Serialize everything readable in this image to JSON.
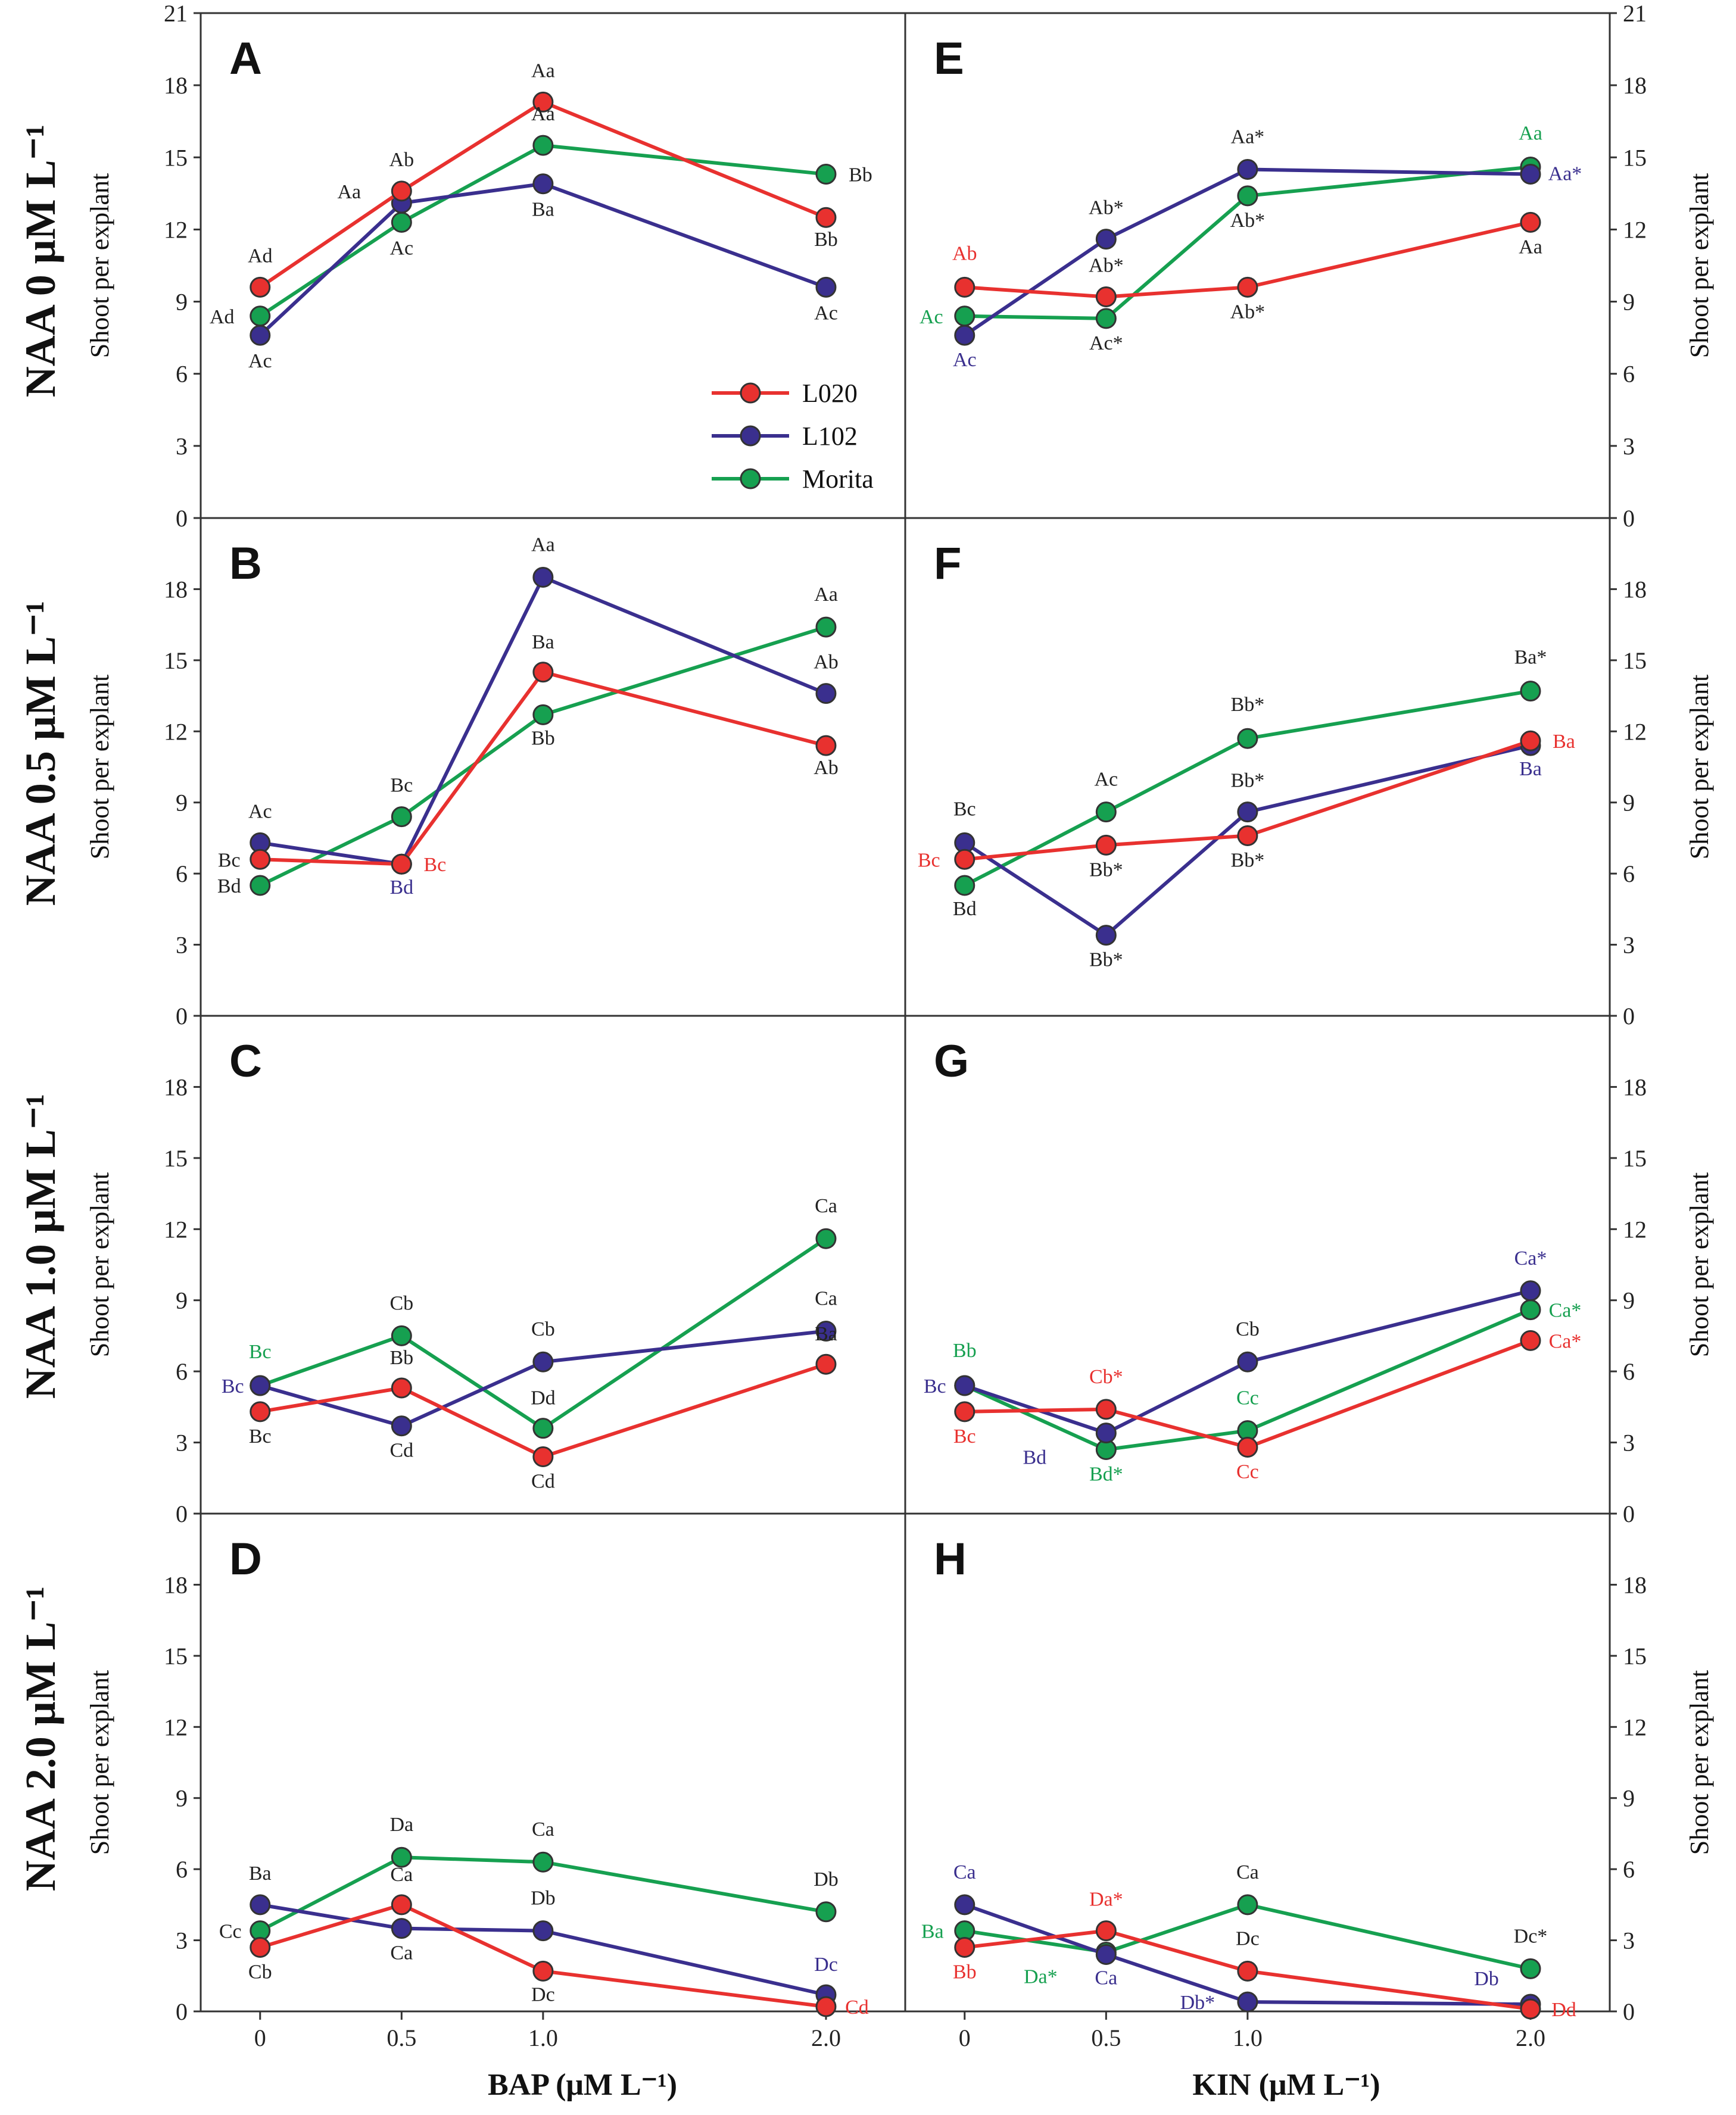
{
  "colors": {
    "L020": "#e8312f",
    "L102": "#3a2f8e",
    "Morita": "#16a050",
    "black": "#222222"
  },
  "legend": [
    "L020",
    "L102",
    "Morita"
  ],
  "y_axis_label": "Shoot per explant",
  "x_axis_labels": {
    "left": "BAP (μM L⁻¹)",
    "right": "KIN (μM L⁻¹)"
  },
  "x_tick_labels": [
    "0",
    "0.5",
    "1.0",
    "2.0"
  ],
  "row_labels": [
    "NAA 0 μM L⁻¹",
    "NAA 0.5 μM L⁻¹",
    "NAA 1.0 μM L⁻¹",
    "NAA 2.0 μM L⁻¹"
  ],
  "chart_data": [
    {
      "type": "line",
      "panel": "A",
      "xlabel": "BAP (μM L⁻¹)",
      "ylabel": "Shoot per explant",
      "ylim": [
        0,
        21
      ],
      "y_ticks": [
        "0",
        "3",
        "6",
        "9",
        "12",
        "15",
        "18",
        "21"
      ],
      "x": [
        0,
        0.5,
        1.0,
        2.0
      ],
      "series": [
        {
          "name": "L020",
          "values": [
            9.6,
            13.6,
            17.3,
            12.5
          ],
          "labels": [
            "Ad",
            "Ab",
            "Aa",
            "Bb"
          ],
          "label_colors": [
            "black",
            "black",
            "black",
            "black"
          ]
        },
        {
          "name": "L102",
          "values": [
            7.6,
            13.1,
            13.9,
            9.6
          ],
          "labels": [
            "Ac",
            "Aa",
            "Ba",
            "Ac"
          ],
          "label_colors": [
            "black",
            "black",
            "black",
            "black"
          ]
        },
        {
          "name": "Morita",
          "values": [
            8.4,
            12.3,
            15.5,
            14.3
          ],
          "labels": [
            "Ad",
            "Ac",
            "Aa",
            "Bb"
          ],
          "label_colors": [
            "black",
            "black",
            "black",
            "black"
          ]
        }
      ]
    },
    {
      "type": "line",
      "panel": "E",
      "xlabel": "KIN (μM L⁻¹)",
      "ylabel": "Shoot per explant",
      "ylim": [
        0,
        21
      ],
      "y_ticks": [
        "0",
        "3",
        "6",
        "9",
        "12",
        "15",
        "18",
        "21"
      ],
      "x": [
        0,
        0.5,
        1.0,
        2.0
      ],
      "series": [
        {
          "name": "L020",
          "values": [
            9.6,
            9.2,
            9.6,
            12.3
          ],
          "labels": [
            "Ab",
            "Ab*",
            "Ab*",
            "Aa"
          ],
          "label_colors": [
            "L020",
            "black",
            "black",
            "black"
          ]
        },
        {
          "name": "L102",
          "values": [
            7.6,
            11.6,
            14.5,
            14.3
          ],
          "labels": [
            "Ac",
            "Ab*",
            "Aa*",
            "Aa*"
          ],
          "label_colors": [
            "L102",
            "black",
            "black",
            "L102"
          ]
        },
        {
          "name": "Morita",
          "values": [
            8.4,
            8.3,
            13.4,
            14.6
          ],
          "labels": [
            "Ac",
            "Ac*",
            "Ab*",
            "Aa"
          ],
          "label_colors": [
            "Morita",
            "black",
            "black",
            "Morita"
          ]
        }
      ]
    },
    {
      "type": "line",
      "panel": "B",
      "xlabel": "BAP (μM L⁻¹)",
      "ylabel": "Shoot per explant",
      "ylim": [
        0,
        21
      ],
      "y_ticks": [
        "0",
        "3",
        "6",
        "9",
        "12",
        "15",
        "18"
      ],
      "x": [
        0,
        0.5,
        1.0,
        2.0
      ],
      "series": [
        {
          "name": "L020",
          "values": [
            6.6,
            6.4,
            14.5,
            11.4
          ],
          "labels": [
            "Bc",
            "Bc",
            "Ba",
            "Ab"
          ],
          "label_colors": [
            "black",
            "L020",
            "black",
            "black"
          ]
        },
        {
          "name": "L102",
          "values": [
            7.3,
            6.4,
            18.5,
            13.6
          ],
          "labels": [
            "Ac",
            "Bd",
            "Aa",
            "Ab"
          ],
          "label_colors": [
            "black",
            "L102",
            "black",
            "black"
          ]
        },
        {
          "name": "Morita",
          "values": [
            5.5,
            8.4,
            12.7,
            16.4
          ],
          "labels": [
            "Bd",
            "Bc",
            "Bb",
            "Aa"
          ],
          "label_colors": [
            "black",
            "black",
            "black",
            "black"
          ]
        }
      ]
    },
    {
      "type": "line",
      "panel": "F",
      "xlabel": "KIN (μM L⁻¹)",
      "ylabel": "Shoot per explant",
      "ylim": [
        0,
        21
      ],
      "y_ticks": [
        "0",
        "3",
        "6",
        "9",
        "12",
        "15",
        "18"
      ],
      "x": [
        0,
        0.5,
        1.0,
        2.0
      ],
      "series": [
        {
          "name": "L020",
          "values": [
            6.6,
            7.2,
            7.6,
            11.6
          ],
          "labels": [
            "Bc",
            "Bb*",
            "Bb*",
            "Ba"
          ],
          "label_colors": [
            "L020",
            "black",
            "black",
            "L020"
          ]
        },
        {
          "name": "L102",
          "values": [
            7.3,
            3.4,
            8.6,
            11.4
          ],
          "labels": [
            "Bc",
            "Bb*",
            "Bb*",
            "Ba"
          ],
          "label_colors": [
            "black",
            "black",
            "black",
            "L102"
          ]
        },
        {
          "name": "Morita",
          "values": [
            5.5,
            8.6,
            11.7,
            13.7
          ],
          "labels": [
            "Bd",
            "Ac",
            "Bb*",
            "Ba*"
          ],
          "label_colors": [
            "black",
            "black",
            "black",
            "black"
          ]
        }
      ]
    },
    {
      "type": "line",
      "panel": "C",
      "xlabel": "BAP (μM L⁻¹)",
      "ylabel": "Shoot per explant",
      "ylim": [
        0,
        21
      ],
      "y_ticks": [
        "0",
        "3",
        "6",
        "9",
        "12",
        "15",
        "18"
      ],
      "x": [
        0,
        0.5,
        1.0,
        2.0
      ],
      "series": [
        {
          "name": "L020",
          "values": [
            4.3,
            5.3,
            2.4,
            6.3
          ],
          "labels": [
            "Bc",
            "Bb",
            "Cd",
            "Ba"
          ],
          "label_colors": [
            "black",
            "black",
            "black",
            "black"
          ]
        },
        {
          "name": "L102",
          "values": [
            5.4,
            3.7,
            6.4,
            7.7
          ],
          "labels": [
            "Bc",
            "Cd",
            "Cb",
            "Ca"
          ],
          "label_colors": [
            "L102",
            "black",
            "black",
            "black"
          ]
        },
        {
          "name": "Morita",
          "values": [
            5.4,
            7.5,
            3.6,
            11.6
          ],
          "labels": [
            "Bc",
            "Cb",
            "Dd",
            "Ca"
          ],
          "label_colors": [
            "Morita",
            "black",
            "black",
            "black"
          ]
        }
      ]
    },
    {
      "type": "line",
      "panel": "G",
      "xlabel": "KIN (μM L⁻¹)",
      "ylabel": "Shoot per explant",
      "ylim": [
        0,
        21
      ],
      "y_ticks": [
        "0",
        "3",
        "6",
        "9",
        "12",
        "15",
        "18"
      ],
      "x": [
        0,
        0.5,
        1.0,
        2.0
      ],
      "series": [
        {
          "name": "L020",
          "values": [
            4.3,
            4.4,
            2.8,
            7.3
          ],
          "labels": [
            "Bc",
            "Cb*",
            "Cc",
            "Ca*"
          ],
          "label_colors": [
            "L020",
            "L020",
            "L020",
            "L020"
          ]
        },
        {
          "name": "L102",
          "values": [
            5.4,
            3.4,
            6.4,
            9.4
          ],
          "labels": [
            "Bc",
            "Bd",
            "Cb",
            "Ca*"
          ],
          "label_colors": [
            "L102",
            "L102",
            "black",
            "L102"
          ]
        },
        {
          "name": "Morita",
          "values": [
            5.4,
            2.7,
            3.5,
            8.6
          ],
          "labels": [
            "Bb",
            "Bd*",
            "Cc",
            "Ca*"
          ],
          "label_colors": [
            "Morita",
            "Morita",
            "Morita",
            "Morita"
          ]
        }
      ]
    },
    {
      "type": "line",
      "panel": "D",
      "xlabel": "BAP (μM L⁻¹)",
      "ylabel": "Shoot per explant",
      "ylim": [
        0,
        21
      ],
      "y_ticks": [
        "0",
        "3",
        "6",
        "9",
        "12",
        "15",
        "18"
      ],
      "x": [
        0,
        0.5,
        1.0,
        2.0
      ],
      "series": [
        {
          "name": "L020",
          "values": [
            2.7,
            4.5,
            1.7,
            0.2
          ],
          "labels": [
            "Cb",
            "Ca",
            "Dc",
            "Cd"
          ],
          "label_colors": [
            "black",
            "black",
            "black",
            "L020"
          ]
        },
        {
          "name": "L102",
          "values": [
            4.5,
            3.5,
            3.4,
            0.7
          ],
          "labels": [
            "Ba",
            "Ca",
            "Db",
            "Dc"
          ],
          "label_colors": [
            "black",
            "black",
            "black",
            "L102"
          ]
        },
        {
          "name": "Morita",
          "values": [
            3.4,
            6.5,
            6.3,
            4.2
          ],
          "labels": [
            "Cc",
            "Da",
            "Ca",
            "Db"
          ],
          "label_colors": [
            "black",
            "black",
            "black",
            "black"
          ]
        }
      ]
    },
    {
      "type": "line",
      "panel": "H",
      "xlabel": "KIN (μM L⁻¹)",
      "ylabel": "Shoot per explant",
      "ylim": [
        0,
        21
      ],
      "y_ticks": [
        "0",
        "3",
        "6",
        "9",
        "12",
        "15",
        "18"
      ],
      "x": [
        0,
        0.5,
        1.0,
        2.0
      ],
      "series": [
        {
          "name": "L020",
          "values": [
            2.7,
            3.4,
            1.7,
            0.1
          ],
          "labels": [
            "Bb",
            "Da*",
            "Dc",
            "Dd"
          ],
          "label_colors": [
            "L020",
            "L020",
            "black",
            "L020"
          ]
        },
        {
          "name": "L102",
          "values": [
            4.5,
            2.4,
            0.4,
            0.3
          ],
          "labels": [
            "Ca",
            "Ca",
            "Db*",
            "Db"
          ],
          "label_colors": [
            "L102",
            "L102",
            "L102",
            "L102"
          ]
        },
        {
          "name": "Morita",
          "values": [
            3.4,
            2.5,
            4.5,
            1.8
          ],
          "labels": [
            "Ba",
            "Da*",
            "Ca",
            "Dc*"
          ],
          "label_colors": [
            "Morita",
            "Morita",
            "black",
            "black"
          ]
        }
      ]
    }
  ]
}
